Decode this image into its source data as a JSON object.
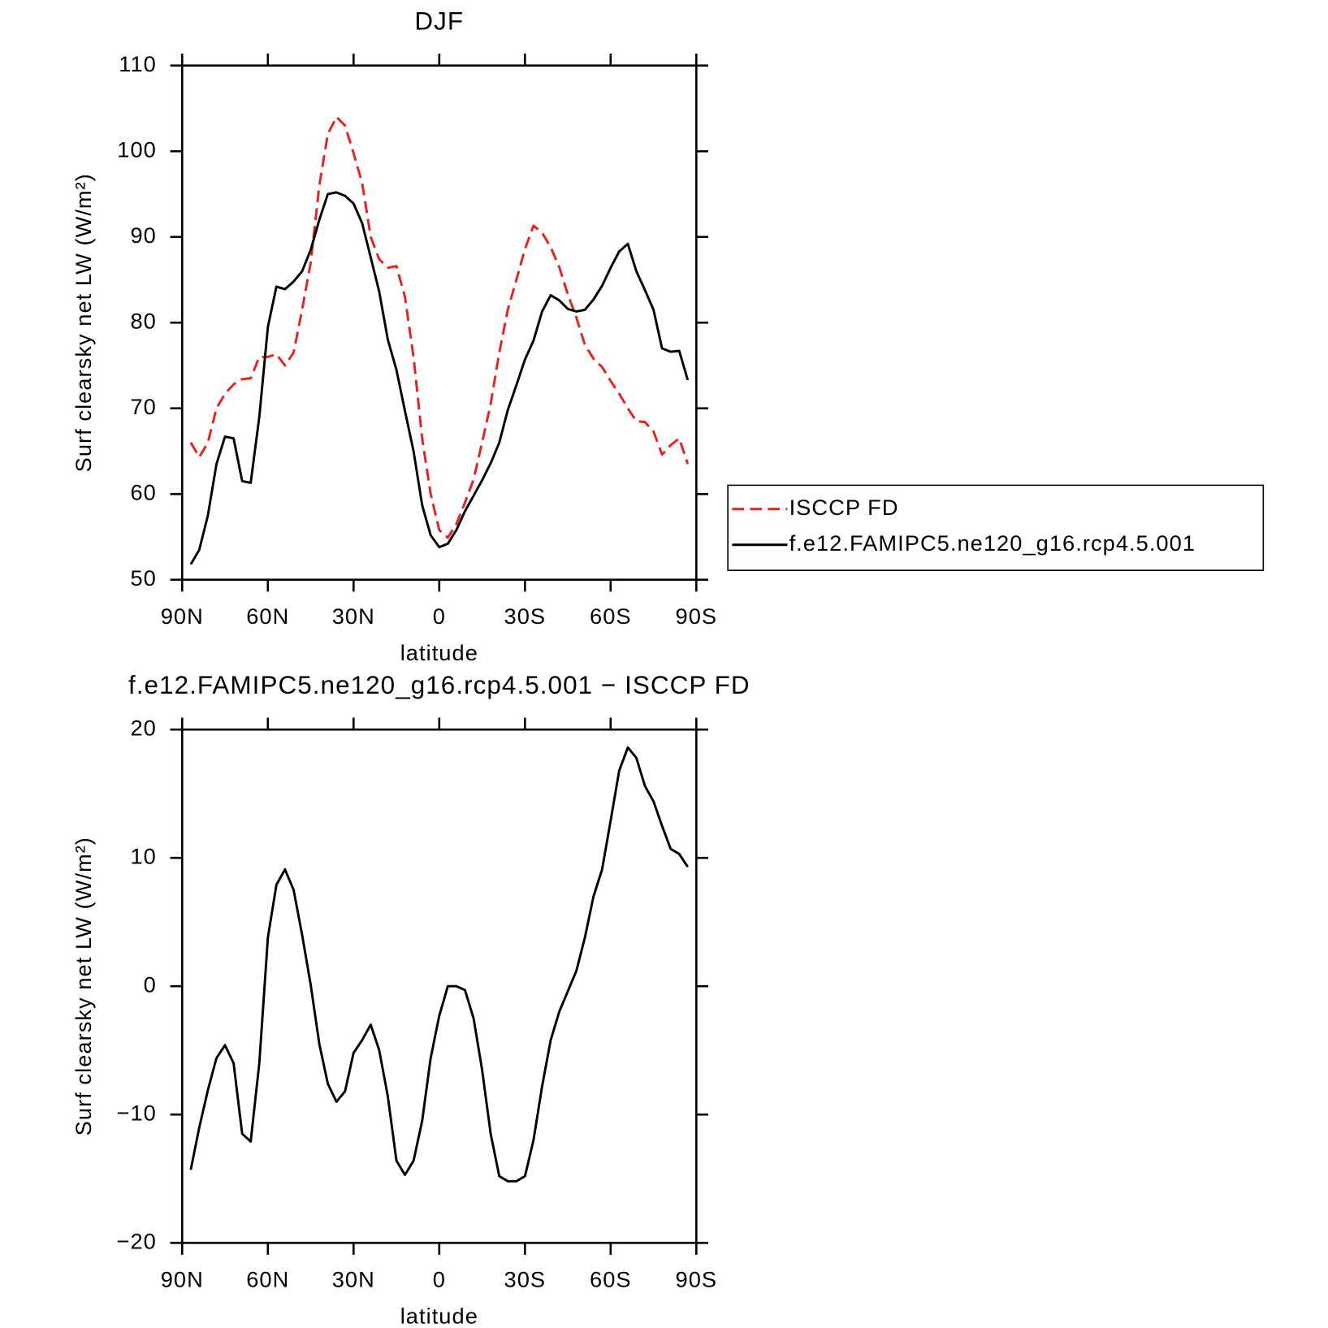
{
  "chart_data": [
    {
      "type": "line",
      "title": "DJF",
      "xlabel": "latitude",
      "ylabel": "Surf clearsky net LW (W/m²)",
      "x": [
        87,
        84,
        81,
        78,
        75,
        72,
        69,
        66,
        63,
        60,
        57,
        54,
        51,
        48,
        45,
        42,
        39,
        36,
        33,
        30,
        27,
        24,
        21,
        18,
        15,
        12,
        9,
        6,
        3,
        0,
        -3,
        -6,
        -9,
        -12,
        -15,
        -18,
        -21,
        -24,
        -27,
        -30,
        -33,
        -36,
        -39,
        -42,
        -45,
        -48,
        -51,
        -54,
        -57,
        -60,
        -63,
        -66,
        -69,
        -72,
        -75,
        -78,
        -81,
        -84,
        -87
      ],
      "xlim": [
        90,
        -90
      ],
      "xticks": [
        {
          "value": 90,
          "label": "90N"
        },
        {
          "value": 60,
          "label": "60N"
        },
        {
          "value": 30,
          "label": "30N"
        },
        0,
        {
          "value": -30,
          "label": "30S"
        },
        {
          "value": -60,
          "label": "60S"
        },
        {
          "value": -90,
          "label": "90S"
        }
      ],
      "ylim": [
        50,
        110
      ],
      "yticks": [
        50,
        60,
        70,
        80,
        90,
        100,
        110
      ],
      "legend": "right",
      "series": [
        {
          "name": "ISCCP FD",
          "color": "#e8211f",
          "dash": "dashed",
          "values": [
            66,
            64.3,
            66,
            70,
            71.7,
            72.8,
            73.4,
            73.5,
            76,
            76,
            76.3,
            75,
            76.5,
            81.5,
            87,
            96,
            102,
            104,
            103,
            99.8,
            96.3,
            90,
            87.4,
            86.4,
            86.6,
            83,
            76,
            66.5,
            60,
            55.8,
            54.9,
            56.5,
            59,
            61.7,
            66,
            70.5,
            76.5,
            81.5,
            85,
            88.6,
            91.3,
            90.5,
            88.8,
            86.5,
            83.3,
            80.6,
            77.4,
            75.8,
            74.8,
            73.2,
            71.7,
            70,
            68.5,
            68.4,
            67.3,
            64.6,
            65.7,
            66.5,
            63.5
          ]
        },
        {
          "name": "f.e12.FAMIPC5.ne120_g16.rcp4.5.001",
          "color": "#000000",
          "dash": "solid",
          "values": [
            51.8,
            53.5,
            57.5,
            63.5,
            66.7,
            66.5,
            61.5,
            61.3,
            69,
            79.5,
            84.2,
            83.9,
            84.8,
            86,
            88.5,
            92,
            95,
            95.2,
            94.8,
            93.9,
            91.6,
            87.6,
            83.6,
            78,
            74.5,
            69.7,
            65,
            58.7,
            55.2,
            53.8,
            54.2,
            55.8,
            58,
            59.8,
            61.6,
            63.6,
            66,
            69.8,
            72.7,
            75.7,
            77.9,
            81.3,
            83.2,
            82.6,
            81.6,
            81.3,
            81.5,
            82.7,
            84.3,
            86.4,
            88.3,
            89.2,
            86,
            83.8,
            81.5,
            77,
            76.6,
            76.7,
            73.3
          ]
        }
      ]
    },
    {
      "type": "line",
      "title": "f.e12.FAMIPC5.ne120_g16.rcp4.5.001 − ISCCP FD",
      "xlabel": "latitude",
      "ylabel": "Surf clearsky net LW (W/m²)",
      "x": [
        87,
        84,
        81,
        78,
        75,
        72,
        69,
        66,
        63,
        60,
        57,
        54,
        51,
        48,
        45,
        42,
        39,
        36,
        33,
        30,
        27,
        24,
        21,
        18,
        15,
        12,
        9,
        6,
        3,
        0,
        -3,
        -6,
        -9,
        -12,
        -15,
        -18,
        -21,
        -24,
        -27,
        -30,
        -33,
        -36,
        -39,
        -42,
        -45,
        -48,
        -51,
        -54,
        -57,
        -60,
        -63,
        -66,
        -69,
        -72,
        -75,
        -78,
        -81,
        -84,
        -87
      ],
      "xlim": [
        90,
        -90
      ],
      "xticks": [
        {
          "value": 90,
          "label": "90N"
        },
        {
          "value": 60,
          "label": "60N"
        },
        {
          "value": 30,
          "label": "30N"
        },
        0,
        {
          "value": -30,
          "label": "30S"
        },
        {
          "value": -60,
          "label": "60S"
        },
        {
          "value": -90,
          "label": "90S"
        }
      ],
      "ylim": [
        -20,
        20
      ],
      "yticks": [
        {
          "value": -20,
          "label": "−20"
        },
        {
          "value": -10,
          "label": "−10"
        },
        0,
        10,
        20
      ],
      "series": [
        {
          "color": "#000000",
          "dash": "solid",
          "values": [
            -14.3,
            -11,
            -8.1,
            -5.6,
            -4.6,
            -6,
            -11.5,
            -12.1,
            -6,
            3.8,
            7.9,
            9.1,
            7.5,
            4,
            0.1,
            -4.5,
            -7.6,
            -9,
            -8.2,
            -5.2,
            -4.2,
            -3,
            -5,
            -8.6,
            -13.6,
            -14.7,
            -13.6,
            -10.5,
            -5.6,
            -2.3,
            0,
            0,
            -0.3,
            -2.5,
            -6.5,
            -11.5,
            -14.8,
            -15.2,
            -15.2,
            -14.8,
            -12,
            -7.8,
            -4.2,
            -2,
            -0.4,
            1.2,
            3.8,
            7,
            9.1,
            12.9,
            16.8,
            18.6,
            17.8,
            15.6,
            14.4,
            12.5,
            10.7,
            10.3,
            9.3
          ]
        }
      ]
    }
  ]
}
